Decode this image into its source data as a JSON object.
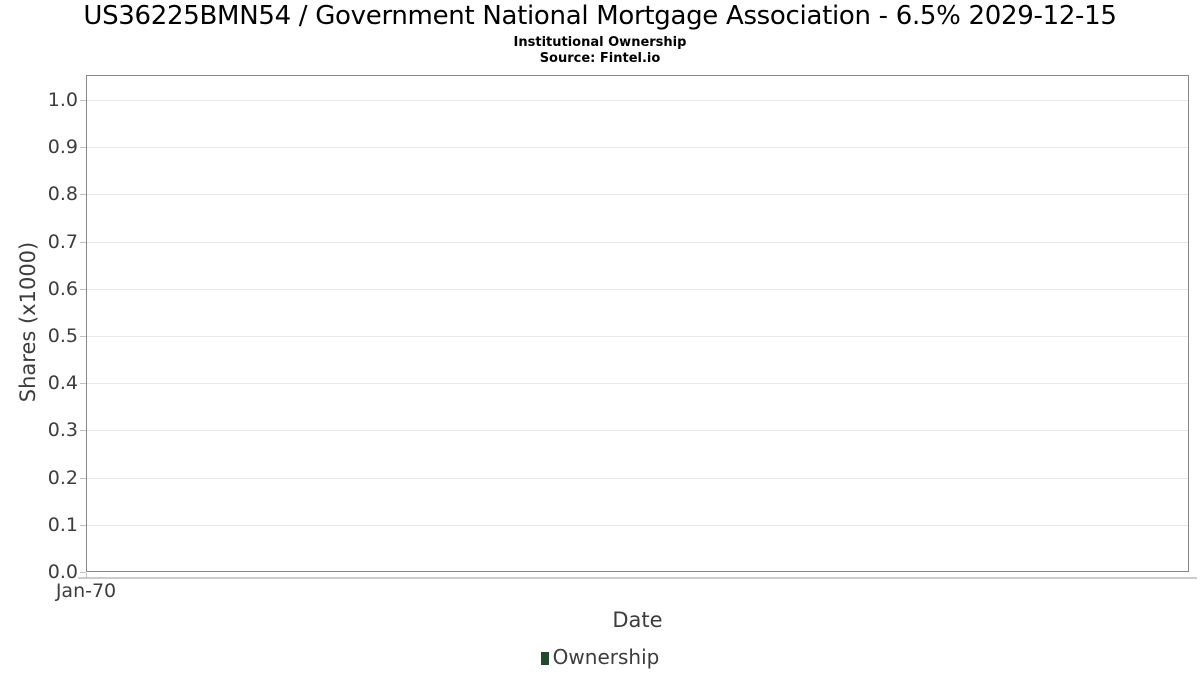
{
  "chart_data": {
    "type": "line",
    "title": "US36225BMN54 / Government National Mortgage Association - 6.5% 2029-12-15",
    "subtitle": "Institutional Ownership",
    "source": "Source: Fintel.io",
    "xlabel": "Date",
    "ylabel": "Shares (x1000)",
    "x_tick_labels": [
      "Jan-70"
    ],
    "y_ticks": [
      "1.0",
      "0.9",
      "0.8",
      "0.7",
      "0.6",
      "0.5",
      "0.4",
      "0.3",
      "0.2",
      "0.1",
      "0.0"
    ],
    "ylim": [
      0.0,
      1.05
    ],
    "grid": true,
    "legend_position": "bottom-center",
    "series": [
      {
        "name": "Ownership",
        "color": "#1d4b2c",
        "x": [],
        "values": []
      }
    ]
  },
  "colors": {
    "legend_swatch": "#1d4b2c",
    "grid_line": "#e8e8e8",
    "plot_border": "#878787",
    "axis_text": "#3d3d3d",
    "title_text": "#000000"
  }
}
